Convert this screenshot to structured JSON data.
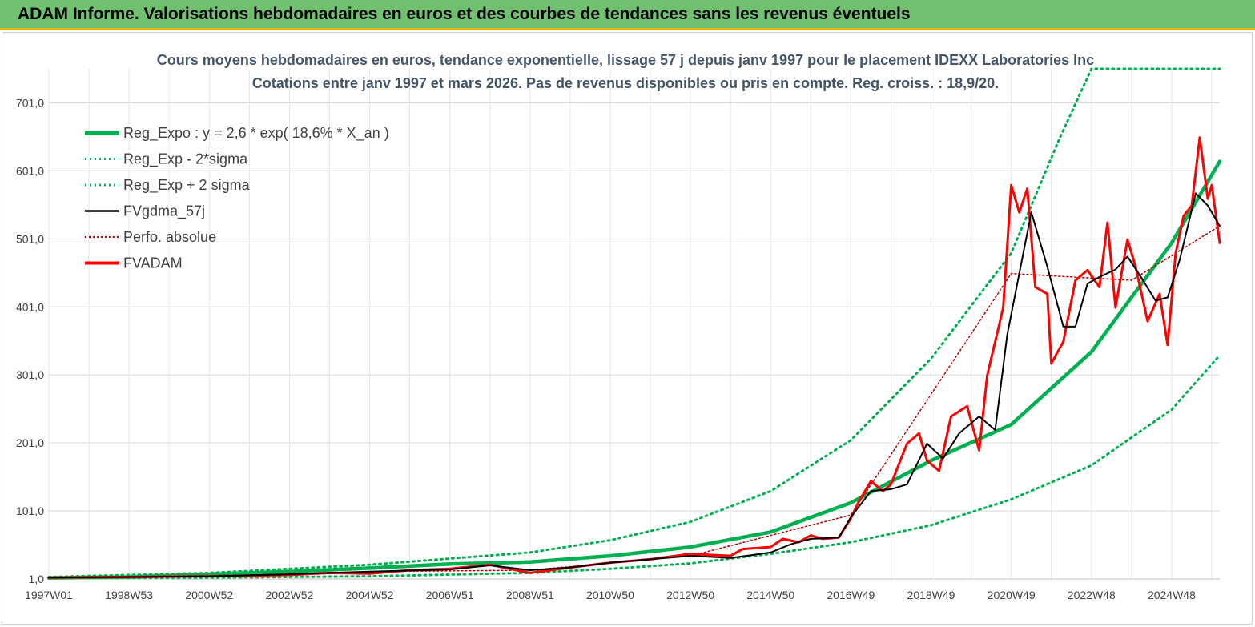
{
  "banner": {
    "title": "ADAM Informe. Valorisations hebdomadaires en euros et des courbes de tendances sans les revenus éventuels"
  },
  "colors": {
    "banner_bg": "#70c070",
    "accent": "#e8b400",
    "reg": "#00b050",
    "fv": "#ff0000",
    "gdma": "#000000"
  },
  "chart_data": {
    "type": "line",
    "title": "Cours moyens hebdomadaires en euros, tendance exponentielle, lissage 57 j depuis janv 1997 pour le placement IDEXX Laboratories Inc",
    "subtitle": "Cotations entre janv 1997 et mars 2026. Pas de revenus disponibles ou pris en compte. Reg. croiss. : 18,9/20.",
    "xlabel": "",
    "ylabel": "",
    "xlim": [
      1997.0,
      2026.2
    ],
    "ylim": [
      1,
      751
    ],
    "y_ticks": [
      1.0,
      101.0,
      201.0,
      301.0,
      401.0,
      501.0,
      601.0,
      701.0
    ],
    "y_tick_labels": [
      "1,0",
      "101,0",
      "201,0",
      "301,0",
      "401,0",
      "501,0",
      "601,0",
      "701,0"
    ],
    "x_tick_labels": [
      "1997W01",
      "1998W53",
      "2000W52",
      "2002W52",
      "2004W52",
      "2006W51",
      "2008W51",
      "2010W50",
      "2012W50",
      "2014W50",
      "2016W49",
      "2018W49",
      "2020W49",
      "2022W48",
      "2024W48"
    ],
    "x_tick_positions": [
      1997.0,
      1999.0,
      2001.0,
      2003.0,
      2005.0,
      2007.0,
      2009.0,
      2011.0,
      2013.0,
      2015.0,
      2017.0,
      2019.0,
      2021.0,
      2023.0,
      2025.0
    ],
    "legend": [
      {
        "label": "Reg_Expo : y = 2,6 * exp( 18,6% *  X_an )",
        "color": "#00b050",
        "style": "solid-thick"
      },
      {
        "label": "Reg_Exp - 2*sigma",
        "color": "#00b050",
        "style": "dotted"
      },
      {
        "label": "Reg_Exp + 2 sigma",
        "color": "#00b050",
        "style": "dotted"
      },
      {
        "label": "FVgdma_57j",
        "color": "#000000",
        "style": "solid"
      },
      {
        "label": "Perfo. absolue",
        "color": "#c00000",
        "style": "dotted"
      },
      {
        "label": "FVADAM",
        "color": "#ff0000",
        "style": "solid-thick"
      }
    ],
    "series": [
      {
        "name": "Reg_Expo",
        "x": [
          1997,
          1999,
          2001,
          2003,
          2005,
          2007,
          2009,
          2011,
          2013,
          2015,
          2017,
          2019,
          2021,
          2023,
          2025,
          2026.2
        ],
        "values": [
          2.6,
          4,
          8,
          12,
          17,
          23,
          26,
          35,
          48,
          70,
          113,
          175,
          228,
          335,
          495,
          615
        ]
      },
      {
        "name": "Reg_Exp - 2*sigma",
        "x": [
          1997,
          2001,
          2005,
          2009,
          2011,
          2013,
          2015,
          2017,
          2019,
          2021,
          2023,
          2025,
          2026.2
        ],
        "values": [
          2,
          3,
          5,
          10,
          16,
          24,
          38,
          55,
          80,
          118,
          168,
          250,
          330
        ]
      },
      {
        "name": "Reg_Exp + 2 sigma",
        "x": [
          1997,
          2001,
          2005,
          2009,
          2011,
          2013,
          2015,
          2017,
          2019,
          2021,
          2022.2,
          2023,
          2026.2
        ],
        "values": [
          4,
          10,
          22,
          40,
          58,
          85,
          130,
          205,
          325,
          480,
          648,
          751,
          751
        ]
      },
      {
        "name": "FVgdma_57j",
        "x": [
          1997,
          1999,
          2001,
          2003,
          2005,
          2007,
          2008,
          2009,
          2010,
          2011,
          2012,
          2013,
          2014,
          2015,
          2015.5,
          2016,
          2016.7,
          2017,
          2017.5,
          2018,
          2018.4,
          2018.9,
          2019.3,
          2019.7,
          2020.2,
          2020.6,
          2020.9,
          2021.5,
          2021.9,
          2022.3,
          2022.6,
          2022.9,
          2023.2,
          2023.6,
          2023.9,
          2024.2,
          2024.6,
          2024.9,
          2025.2,
          2025.6,
          2025.9,
          2026.2
        ],
        "values": [
          3,
          4,
          5,
          8,
          12,
          15,
          21,
          14,
          18,
          25,
          30,
          35,
          32,
          40,
          52,
          60,
          62,
          92,
          130,
          133,
          140,
          200,
          178,
          215,
          240,
          220,
          360,
          540,
          460,
          372,
          372,
          435,
          445,
          456,
          475,
          448,
          410,
          415,
          470,
          568,
          550,
          520
        ]
      },
      {
        "name": "Perfo. absolue",
        "x": [
          1997,
          2001,
          2005,
          2009,
          2013,
          2017,
          2021,
          2024,
          2026.2
        ],
        "values": [
          3,
          5,
          12,
          14,
          35,
          95,
          450,
          440,
          520
        ]
      },
      {
        "name": "FVADAM",
        "x": [
          1997,
          1999,
          2001,
          2003,
          2004,
          2005,
          2006,
          2007,
          2008,
          2009,
          2010,
          2011,
          2012,
          2013,
          2014,
          2014.3,
          2015,
          2015.3,
          2015.7,
          2016,
          2016.3,
          2016.7,
          2017,
          2017.2,
          2017.5,
          2017.8,
          2018,
          2018.4,
          2018.7,
          2018.9,
          2019.2,
          2019.5,
          2019.9,
          2020.2,
          2020.4,
          2020.8,
          2021.0,
          2021.2,
          2021.4,
          2021.6,
          2021.9,
          2022.0,
          2022.3,
          2022.6,
          2022.9,
          2023.2,
          2023.4,
          2023.6,
          2023.9,
          2024.1,
          2024.4,
          2024.7,
          2024.9,
          2025.1,
          2025.3,
          2025.5,
          2025.7,
          2025.9,
          2026.0,
          2026.2
        ],
        "values": [
          3,
          4,
          5,
          7,
          10,
          9,
          14,
          16,
          22,
          10,
          18,
          25,
          30,
          38,
          35,
          45,
          48,
          60,
          55,
          65,
          60,
          62,
          90,
          115,
          145,
          130,
          140,
          200,
          215,
          175,
          160,
          240,
          255,
          190,
          300,
          400,
          580,
          540,
          575,
          430,
          420,
          318,
          350,
          440,
          455,
          430,
          525,
          400,
          500,
          460,
          380,
          420,
          345,
          480,
          535,
          550,
          650,
          560,
          580,
          495
        ]
      }
    ]
  }
}
